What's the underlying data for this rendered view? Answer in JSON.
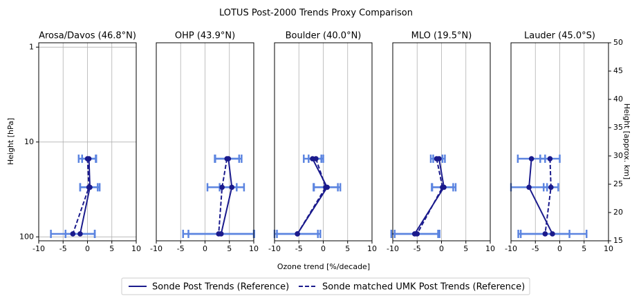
{
  "figure": {
    "title": "LOTUS Post-2000 Trends Proxy Comparison",
    "xlabel": "Ozone trend [%/decade]",
    "ylabel": "Height [hPa]",
    "y2label": "Height [approx. km]"
  },
  "chart_data": [
    {
      "type": "scatter",
      "title": "Arosa/Davos (46.8°N)",
      "levels": [
        15,
        30,
        93
      ],
      "xlim": [
        -10,
        10
      ],
      "xticks": [
        -10,
        -5,
        0,
        5,
        10
      ],
      "ylim": [
        110,
        0.9
      ],
      "yticks": [
        1,
        10,
        100
      ],
      "log_y": true,
      "grid": true,
      "series": [
        {
          "name": "Sonde Post Trends (Reference)",
          "color": "#1a1a8c",
          "linestyle": "solid",
          "error_color": "#5b84e0",
          "values": [
            0.3,
            0.5,
            -1.5
          ],
          "errors": [
            1.4,
            2.0,
            3.0
          ]
        },
        {
          "name": "Sonde matched UMK Post Trends (Reference)",
          "color": "#1a1a8c",
          "linestyle": "dashed",
          "error_color": "#5b84e0",
          "values": [
            0.0,
            0.3,
            -3.0
          ],
          "errors": [
            1.8,
            1.8,
            4.5
          ]
        }
      ]
    },
    {
      "type": "scatter",
      "title": "OHP (43.9°N)",
      "levels": [
        15,
        30,
        93
      ],
      "xlim": [
        -10,
        10
      ],
      "xticks": [
        -10,
        -5,
        0,
        5,
        10
      ],
      "ylim": [
        110,
        0.9
      ],
      "log_y": true,
      "grid": true,
      "series": [
        {
          "color": "#1a1a8c",
          "linestyle": "solid",
          "error_color": "#5b84e0",
          "values": [
            4.8,
            5.5,
            3.3
          ],
          "errors": [
            2.7,
            2.5,
            6.7
          ]
        },
        {
          "color": "#1a1a8c",
          "linestyle": "dashed",
          "error_color": "#5b84e0",
          "values": [
            4.5,
            3.5,
            2.8
          ],
          "errors": [
            2.5,
            3.0,
            7.3
          ]
        }
      ]
    },
    {
      "type": "scatter",
      "title": "Boulder (40.0°N)",
      "levels": [
        15,
        30,
        93
      ],
      "xlim": [
        -10,
        10
      ],
      "xticks": [
        -10,
        -5,
        0,
        5,
        10
      ],
      "ylim": [
        110,
        0.9
      ],
      "log_y": true,
      "grid": true,
      "series": [
        {
          "color": "#1a1a8c",
          "linestyle": "solid",
          "error_color": "#5b84e0",
          "values": [
            -2.2,
            0.8,
            -5.3
          ],
          "errors": [
            1.8,
            2.7,
            4.7
          ]
        },
        {
          "color": "#1a1a8c",
          "linestyle": "dashed",
          "error_color": "#5b84e0",
          "values": [
            -1.5,
            0.5,
            -5.3
          ],
          "errors": [
            1.5,
            2.5,
            4.2
          ]
        }
      ]
    },
    {
      "type": "scatter",
      "title": "MLO (19.5°N)",
      "levels": [
        15,
        30,
        93
      ],
      "xlim": [
        -10,
        10
      ],
      "xticks": [
        -10,
        -5,
        0,
        5,
        10
      ],
      "ylim": [
        110,
        0.9
      ],
      "log_y": true,
      "grid": true,
      "series": [
        {
          "color": "#1a1a8c",
          "linestyle": "solid",
          "error_color": "#5b84e0",
          "values": [
            -0.5,
            0.5,
            -5.5
          ],
          "errors": [
            1.2,
            2.4,
            4.8
          ]
        },
        {
          "color": "#1a1a8c",
          "linestyle": "dashed",
          "error_color": "#5b84e0",
          "values": [
            -1.0,
            0.2,
            -5.0
          ],
          "errors": [
            1.2,
            2.2,
            4.6
          ]
        }
      ]
    },
    {
      "type": "scatter",
      "title": "Lauder (45.0°S)",
      "levels": [
        15,
        30,
        93
      ],
      "xlim": [
        -10,
        10
      ],
      "xticks": [
        -10,
        -5,
        0,
        5,
        10
      ],
      "ylim": [
        110,
        0.9
      ],
      "log_y": true,
      "grid": true,
      "y2lim": [
        15,
        50
      ],
      "y2ticks": [
        15,
        20,
        25,
        30,
        35,
        40,
        45,
        50
      ],
      "series": [
        {
          "color": "#1a1a8c",
          "linestyle": "solid",
          "error_color": "#5b84e0",
          "values": [
            -5.8,
            -6.3,
            -1.5
          ],
          "errors": [
            2.8,
            3.7,
            7.0
          ]
        },
        {
          "color": "#1a1a8c",
          "linestyle": "dashed",
          "error_color": "#5b84e0",
          "values": [
            -2.0,
            -1.8,
            -3.0
          ],
          "errors": [
            2.0,
            1.5,
            5.0
          ]
        }
      ]
    }
  ]
}
